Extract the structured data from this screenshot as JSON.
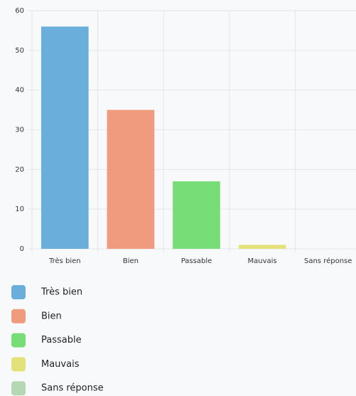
{
  "chart_data": {
    "type": "bar",
    "categories": [
      "Très bien",
      "Bien",
      "Passable",
      "Mauvais",
      "Sans réponse"
    ],
    "values": [
      56,
      35,
      17,
      1,
      0
    ],
    "colors": [
      "#6aafdc",
      "#f09b7d",
      "#77dd77",
      "#e3e27a",
      "#b6d7b3"
    ],
    "ylim": [
      0,
      60
    ],
    "yticks": [
      0,
      10,
      20,
      30,
      40,
      50,
      60
    ],
    "grid": true,
    "legend": "bottom"
  }
}
